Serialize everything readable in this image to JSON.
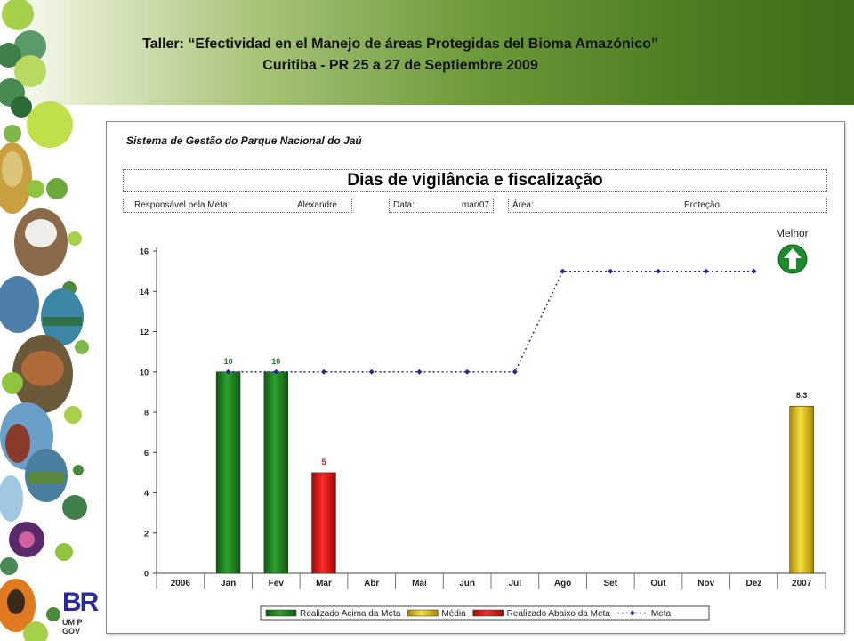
{
  "slide": {
    "title_line1": "Taller: “Efectividad en el Manejo de áreas Protegidas del  Bioma Amazónico”",
    "title_line2": "Curitiba - PR 25 a 27 de Septiembre 2009"
  },
  "logo": {
    "letters": "BR",
    "sub1": "UM P",
    "sub2": "GOV"
  },
  "panel": {
    "system_name": "Sistema de Gestão do Parque Nacional do Jaú",
    "chart_title": "Dias de vigilância e fiscalização",
    "responsavel_label": "Responsável pela Meta:",
    "responsavel_value": "Alexandre",
    "data_label": "Data:",
    "data_value": "mar/07",
    "area_label": "Área:",
    "area_value": "Proteção",
    "melhor_label": "Melhor"
  },
  "colors": {
    "green_bar": "#1e7a1e",
    "yellow_bar": "#e6c200",
    "red_bar": "#e01010",
    "meta_line": "#2a2a8a",
    "green_label": "#1e7a1e",
    "red_label": "#e01010"
  },
  "icons": {
    "melhor": "up-arrow-icon"
  },
  "chart_data": {
    "type": "bar",
    "categories": [
      "2006",
      "Jan",
      "Fev",
      "Mar",
      "Abr",
      "Mai",
      "Jun",
      "Jul",
      "Ago",
      "Set",
      "Out",
      "Nov",
      "Dez",
      "2007"
    ],
    "ylim": [
      0,
      16
    ],
    "yticks": [
      0,
      2,
      4,
      6,
      8,
      10,
      12,
      14,
      16
    ],
    "series": [
      {
        "name": "Realizado Acima da Meta",
        "kind": "bar",
        "color": "#1e7a1e",
        "values": [
          null,
          10,
          10,
          null,
          null,
          null,
          null,
          null,
          null,
          null,
          null,
          null,
          null,
          null
        ],
        "labels": [
          null,
          "10",
          "10",
          null,
          null,
          null,
          null,
          null,
          null,
          null,
          null,
          null,
          null,
          null
        ]
      },
      {
        "name": "Média",
        "kind": "bar",
        "color": "#e6c200",
        "values": [
          null,
          null,
          null,
          null,
          null,
          null,
          null,
          null,
          null,
          null,
          null,
          null,
          null,
          8.3
        ],
        "labels": [
          null,
          null,
          null,
          null,
          null,
          null,
          null,
          null,
          null,
          null,
          null,
          null,
          null,
          "8,3"
        ]
      },
      {
        "name": "Realizado Abaixo da Meta",
        "kind": "bar",
        "color": "#e01010",
        "values": [
          null,
          null,
          null,
          5,
          null,
          null,
          null,
          null,
          null,
          null,
          null,
          null,
          null,
          null
        ],
        "labels": [
          null,
          null,
          null,
          "5",
          null,
          null,
          null,
          null,
          null,
          null,
          null,
          null,
          null,
          null
        ]
      },
      {
        "name": "Meta",
        "kind": "line",
        "color": "#2a2a8a",
        "values": [
          null,
          10,
          10,
          10,
          10,
          10,
          10,
          10,
          15,
          15,
          15,
          15,
          15,
          null
        ]
      }
    ],
    "legend_position": "bottom",
    "grid": false
  }
}
